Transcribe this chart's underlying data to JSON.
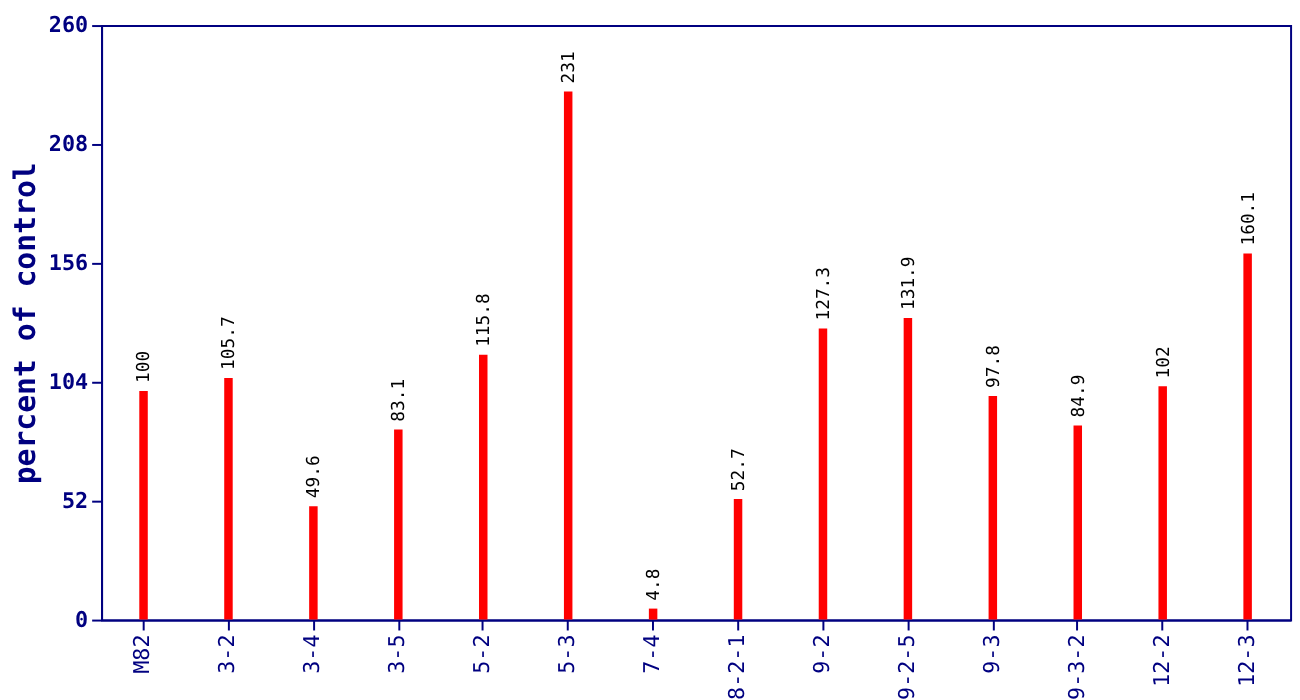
{
  "chart_data": {
    "type": "bar",
    "ylabel": "percent of control",
    "categories": [
      "M82",
      "3-2",
      "3-4",
      "3-5",
      "5-2",
      "5-3",
      "7-4",
      "8-2-1",
      "9-2",
      "9-2-5",
      "9-3",
      "9-3-2",
      "12-2",
      "12-3"
    ],
    "values": [
      100,
      105.7,
      49.6,
      83.1,
      115.8,
      231,
      4.8,
      52.7,
      127.3,
      131.9,
      97.8,
      84.9,
      102,
      160.1
    ],
    "color": "#ff0000",
    "ylim": [
      0,
      260
    ],
    "yticks": [
      0,
      52,
      104,
      156,
      208,
      260
    ],
    "grid": false,
    "data_labels": true
  }
}
